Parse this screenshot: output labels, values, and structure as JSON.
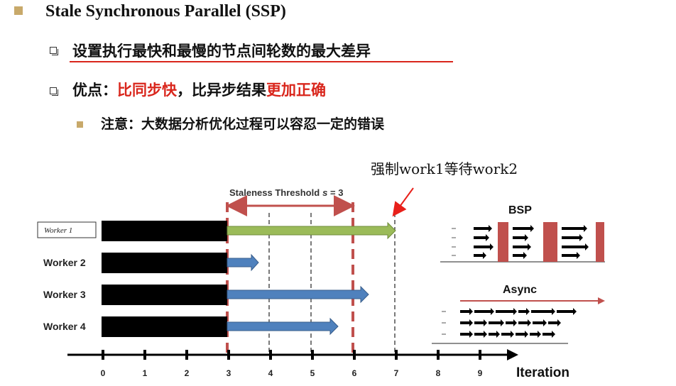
{
  "title": "Stale Synchronous Parallel (SSP)",
  "bullets": {
    "b1": "设置执行最快和最慢的节点间轮数的最大差异",
    "b2_prefix": "优点：",
    "b2_red1": "比同步快",
    "b2_mid": "，比异步结果",
    "b2_red2": "更加正确",
    "b3": "注意：大数据分析优化过程可以容忍一定的错误"
  },
  "annotation": "强制work1等待work2",
  "diagram": {
    "threshold_label": "Staleness Threshold",
    "threshold_s": "s",
    "threshold_eq": " = 3",
    "workers": [
      "Worker 1",
      "Worker 2",
      "Worker 3",
      "Worker 4"
    ],
    "axis_ticks": [
      "0",
      "1",
      "2",
      "3",
      "4",
      "5",
      "6",
      "7",
      "8",
      "9"
    ],
    "axis_label": "Iteration",
    "bsp_label": "BSP",
    "async_label": "Async",
    "colors": {
      "green_arrow": "#9bbb59",
      "blue_arrow": "#4f81bd",
      "threshold": "#c0504d",
      "barrier": "#c0504d",
      "progress": "#000000"
    }
  }
}
